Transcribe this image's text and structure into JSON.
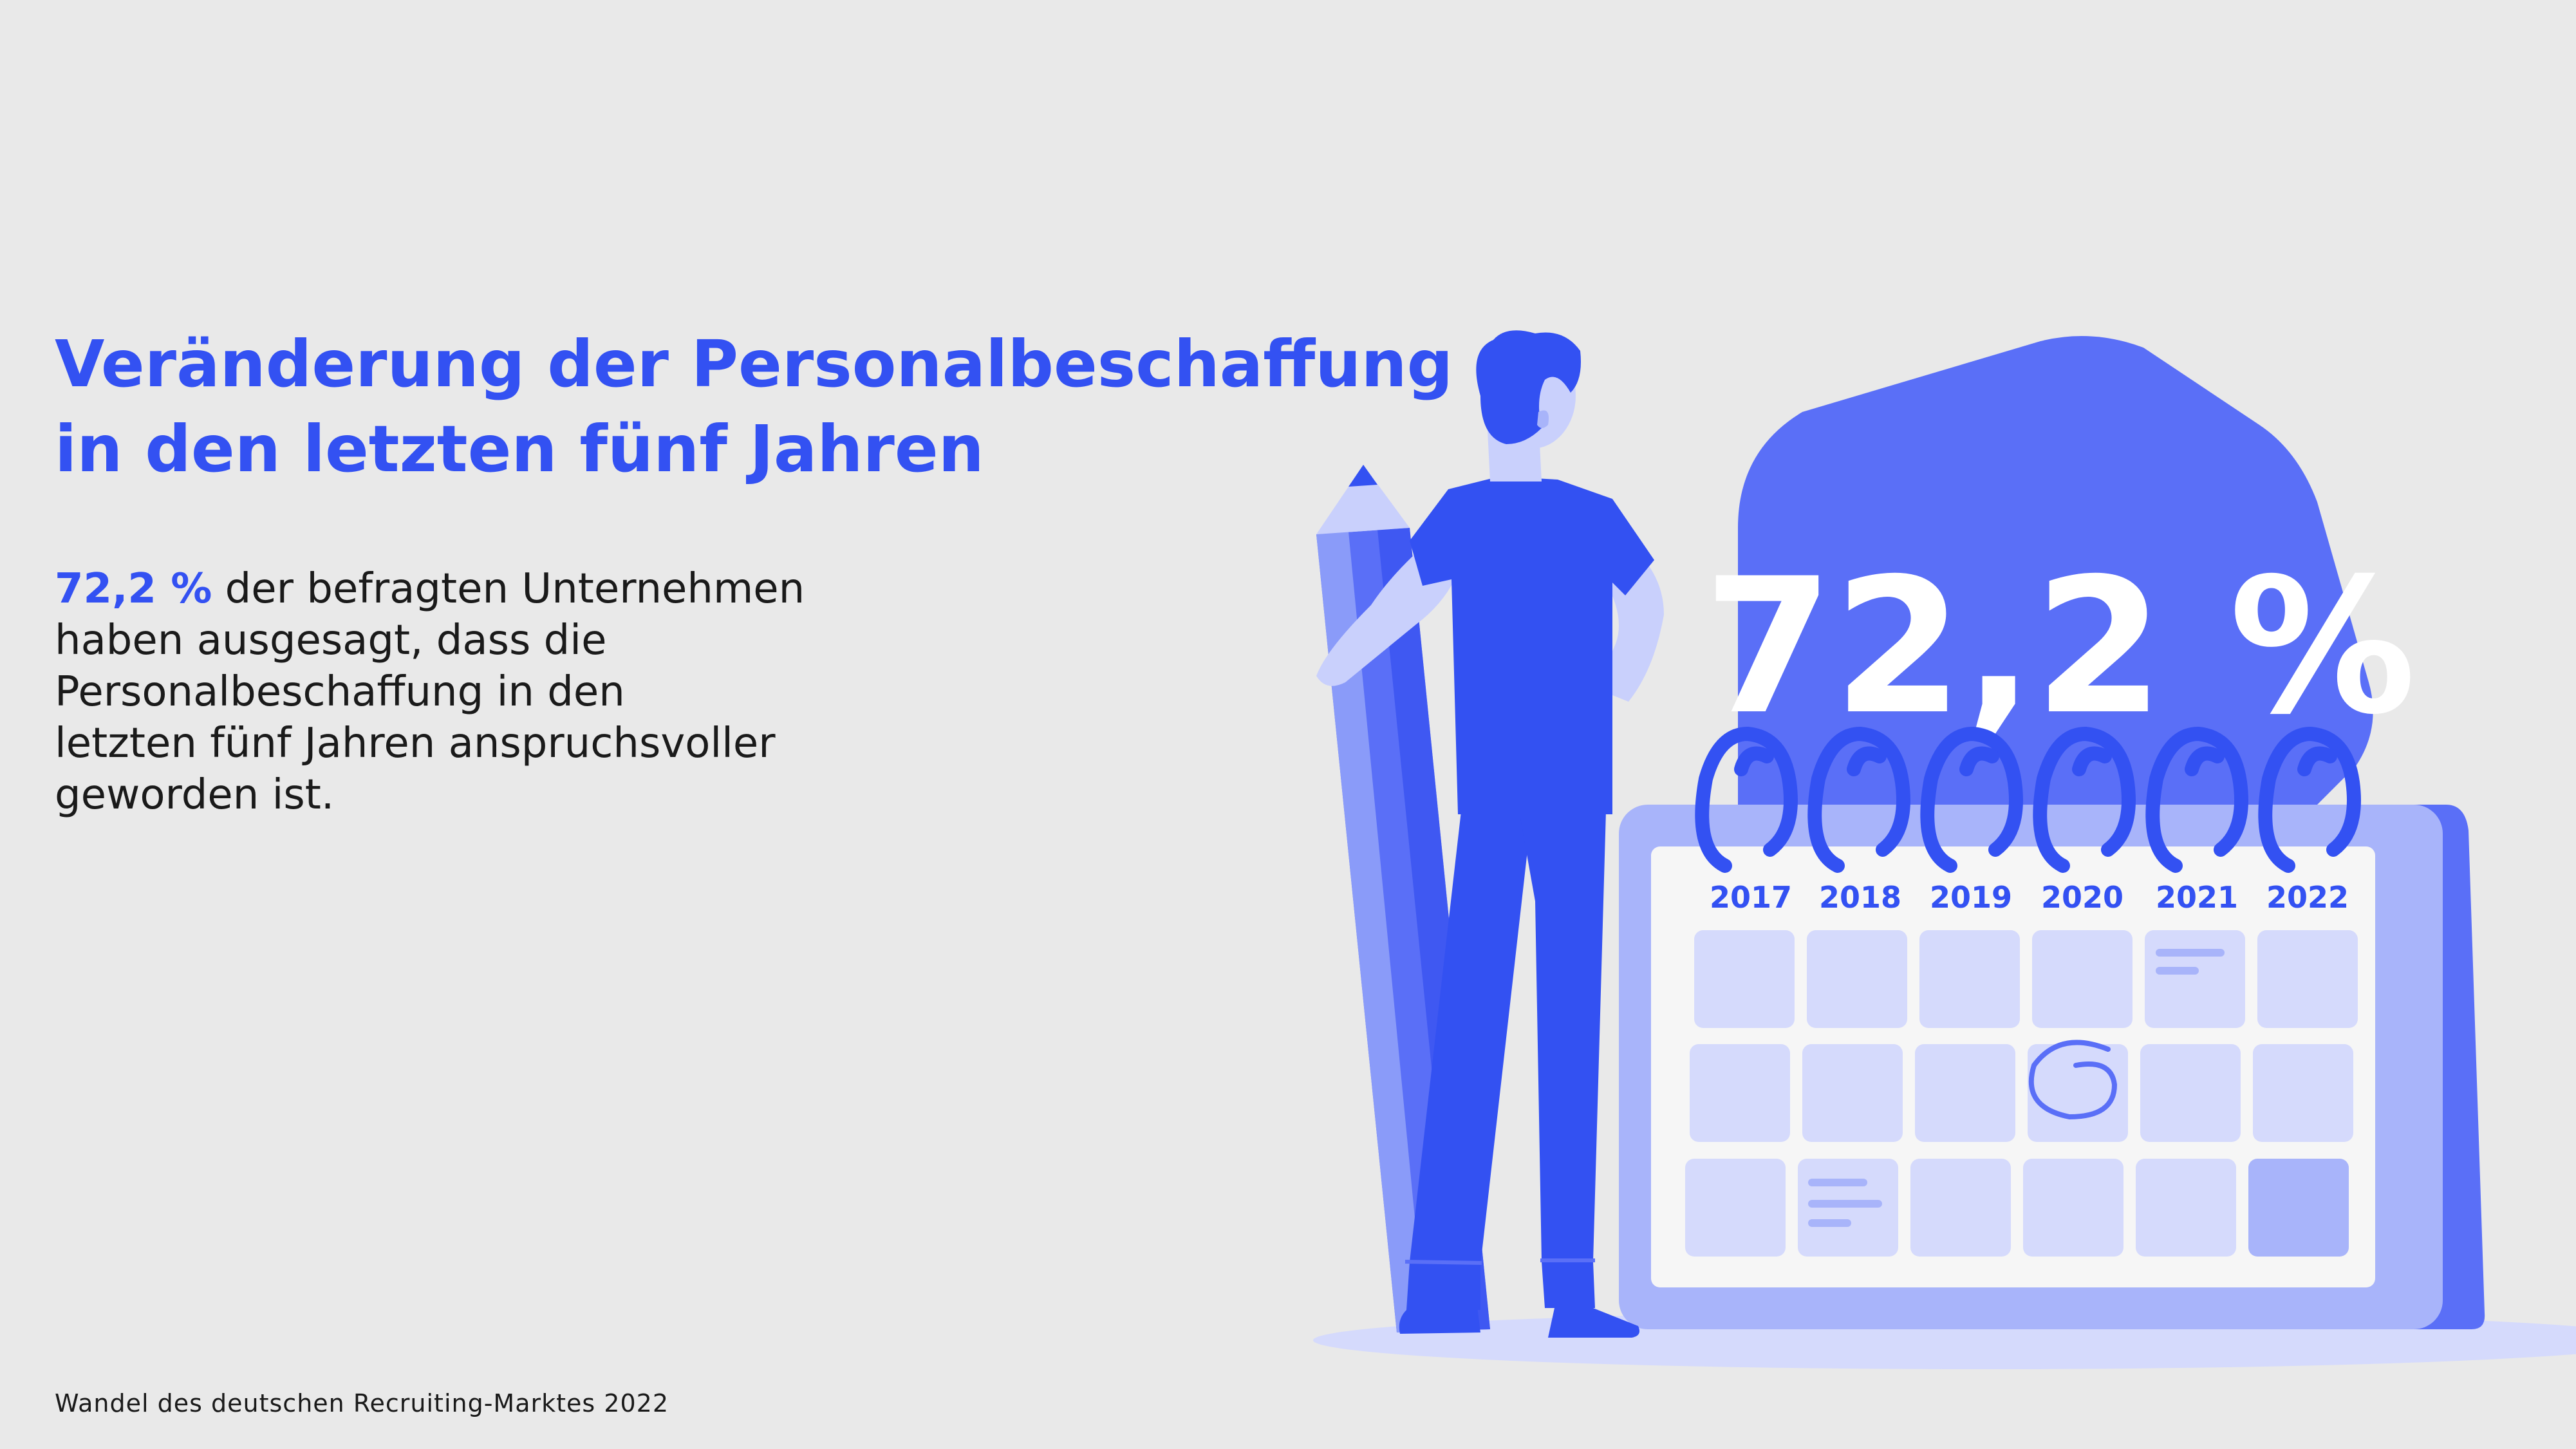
{
  "headline": {
    "line1": "Veränderung der Personalbeschaffung",
    "line2": "in den letzten fünf Jahren"
  },
  "statement": {
    "highlight": "72,2 %",
    "line1_rest": " der befragten Unternehmen",
    "line2": "haben ausgesagt, dass die",
    "line3": "Personalbeschaffung in den",
    "line4": "letzten fünf Jahren anspruchsvoller",
    "line5": "geworden ist."
  },
  "illustration": {
    "big_number": "72,2 %",
    "years": [
      "2017",
      "2018",
      "2019",
      "2020",
      "2021",
      "2022"
    ]
  },
  "source": "Wandel des deutschen Recruiting-Marktes 2022",
  "colors": {
    "accent": "#3351F2",
    "medium": "#5A6FF7",
    "light": "#A8B4FA",
    "pale": "#D5DAFC",
    "background": "#E9E9E9"
  }
}
